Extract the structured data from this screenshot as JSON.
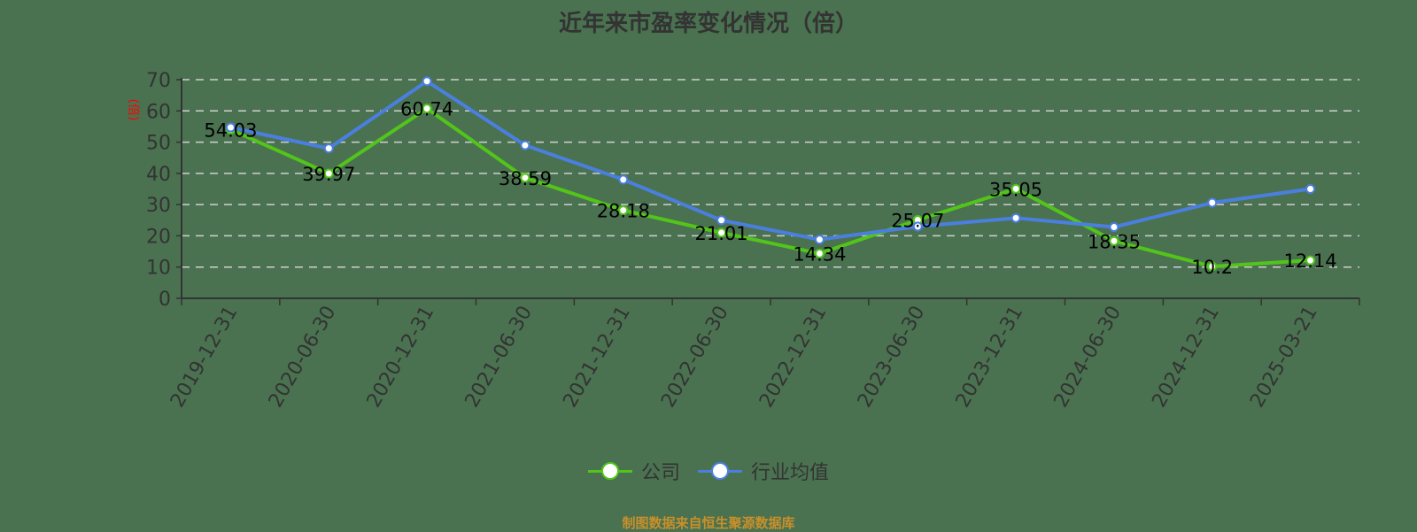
{
  "title": "近年来市盈率变化情况（倍）",
  "y_unit_label": "(倍)",
  "legend": [
    {
      "label": "公司",
      "color": "#52c41a"
    },
    {
      "label": "行业均值",
      "color": "#4a7fe0"
    }
  ],
  "source": "制图数据来自恒生聚源数据库",
  "chart_data": {
    "type": "line",
    "title": "近年来市盈率变化情况（倍）",
    "xlabel": "",
    "ylabel": "(倍)",
    "ylim": [
      0,
      70
    ],
    "yticks": [
      0,
      10,
      20,
      30,
      40,
      50,
      60,
      70
    ],
    "grid": true,
    "legend_position": "bottom",
    "categories": [
      "2019-12-31",
      "2020-06-30",
      "2020-12-31",
      "2021-06-30",
      "2021-12-31",
      "2022-06-30",
      "2022-12-31",
      "2023-06-30",
      "2023-12-31",
      "2024-06-30",
      "2024-12-31",
      "2025-03-21"
    ],
    "series": [
      {
        "name": "公司",
        "color": "#52c41a",
        "values": [
          54.03,
          39.97,
          60.74,
          38.59,
          28.18,
          21.01,
          14.34,
          25.07,
          35.05,
          18.35,
          10.2,
          12.14
        ],
        "labels_shown": true
      },
      {
        "name": "行业均值",
        "color": "#4a7fe0",
        "values": [
          54.7,
          48.0,
          69.5,
          49.0,
          38.0,
          25.0,
          18.8,
          23.0,
          25.7,
          22.8,
          30.6,
          35.0
        ],
        "labels_shown": false
      }
    ]
  }
}
